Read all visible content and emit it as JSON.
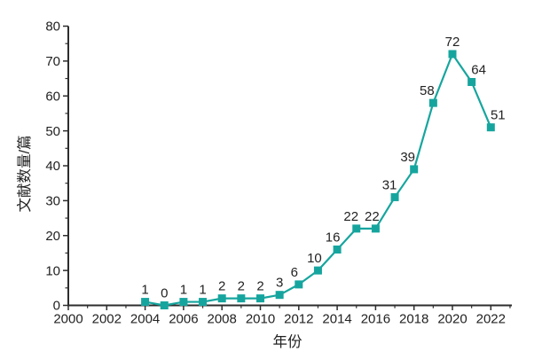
{
  "chart_data": {
    "type": "line",
    "title": "",
    "xlabel": "年份",
    "ylabel": "文献数量/篇",
    "x": [
      2004,
      2005,
      2006,
      2007,
      2008,
      2009,
      2010,
      2011,
      2012,
      2013,
      2014,
      2015,
      2016,
      2017,
      2018,
      2019,
      2020,
      2021,
      2022
    ],
    "values": [
      1,
      0,
      1,
      1,
      2,
      2,
      2,
      3,
      6,
      10,
      16,
      22,
      22,
      31,
      39,
      58,
      72,
      64,
      51
    ],
    "xlim": [
      2000,
      2023.1
    ],
    "ylim": [
      0,
      80
    ],
    "x_tick_labels": [
      "2000",
      "2002",
      "2004",
      "2006",
      "2008",
      "2010",
      "2012",
      "2014",
      "2016",
      "2018",
      "2020",
      "2022"
    ],
    "x_major_ticks": [
      2000,
      2002,
      2004,
      2006,
      2008,
      2010,
      2012,
      2014,
      2016,
      2018,
      2020,
      2022
    ],
    "y_tick_labels": [
      "0",
      "10",
      "20",
      "30",
      "40",
      "50",
      "60",
      "70",
      "80"
    ],
    "y_major_ticks": [
      0,
      10,
      20,
      30,
      40,
      50,
      60,
      70,
      80
    ],
    "y_minor_step": 5,
    "x_minor_step": 1,
    "grid": false,
    "legend": "none",
    "marker": "square",
    "colors": {
      "series": "#16a59e",
      "axis": "#2d2d2d",
      "text": "#222222"
    }
  }
}
